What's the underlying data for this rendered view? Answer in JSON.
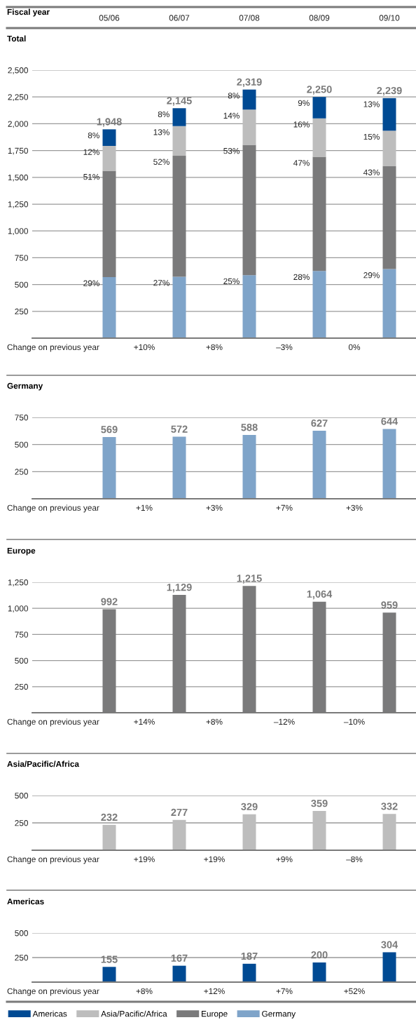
{
  "chart_data": [
    {
      "type": "bar",
      "stacked": true,
      "title": "Total",
      "xlabel": "Fiscal year",
      "categories": [
        "05/06",
        "06/07",
        "07/08",
        "08/09",
        "09/10"
      ],
      "series": [
        {
          "name": "Germany",
          "color": "#7fa4c9",
          "values": [
            569,
            572,
            588,
            627,
            644
          ]
        },
        {
          "name": "Europe",
          "color": "#7a7a7b",
          "values": [
            992,
            1129,
            1215,
            1064,
            959
          ]
        },
        {
          "name": "Asia/Pacific/Africa",
          "color": "#bdbdbd",
          "values": [
            232,
            277,
            329,
            359,
            332
          ]
        },
        {
          "name": "Americas",
          "color": "#004a93",
          "values": [
            155,
            167,
            187,
            200,
            304
          ]
        }
      ],
      "totals": [
        "1,948",
        "2,145",
        "2,319",
        "2,250",
        "2,239"
      ],
      "ylim": [
        0,
        2500
      ],
      "yticks": [
        250,
        500,
        750,
        {
          "value": 1000,
          "label": "1,000"
        },
        {
          "value": 1250,
          "label": "1,250"
        },
        {
          "value": 1500,
          "label": "1,500"
        },
        {
          "value": 1750,
          "label": "1,750"
        },
        {
          "value": 2000,
          "label": "2,000"
        },
        {
          "value": 2250,
          "label": "2,250"
        },
        {
          "value": 2500,
          "label": "2,500"
        }
      ],
      "grid": "y",
      "legend": "bottom",
      "annotations": [
        "Change on previous year",
        "+10%",
        "+8%",
        "–3%",
        "0%",
        {
          "text": "29%",
          "x": "05/06",
          "y": 569
        },
        {
          "text": "27%",
          "x": "06/07",
          "y": 572
        },
        {
          "text": "25%",
          "x": "07/08",
          "y": 588
        },
        {
          "text": "28%",
          "x": "08/09",
          "y": 627
        },
        {
          "text": "29%",
          "x": "09/10",
          "y": 644
        },
        {
          "text": "51%",
          "x": "05/06",
          "y": 1561
        },
        {
          "text": "52%",
          "x": "06/07",
          "y": 1701
        },
        {
          "text": "53%",
          "x": "07/08",
          "y": 1803
        },
        {
          "text": "47%",
          "x": "08/09",
          "y": 1691
        },
        {
          "text": "43%",
          "x": "09/10",
          "y": 1603
        },
        {
          "text": "12%",
          "x": "05/06",
          "y": 1793
        },
        {
          "text": "13%",
          "x": "06/07",
          "y": 1978
        },
        {
          "text": "14%",
          "x": "07/08",
          "y": 2132
        },
        {
          "text": "16%",
          "x": "08/09",
          "y": 2050
        },
        {
          "text": "15%",
          "x": "09/10",
          "y": 1935
        },
        {
          "text": "8%",
          "x": "05/06",
          "y": 1948
        },
        {
          "text": "8%",
          "x": "06/07",
          "y": 2145
        },
        {
          "text": "8%",
          "x": "07/08",
          "y": 2319
        },
        {
          "text": "9%",
          "x": "08/09",
          "y": 2250
        },
        {
          "text": "13%",
          "x": "09/10",
          "y": 2239
        }
      ]
    },
    {
      "type": "bar",
      "title": "Germany",
      "categories": [
        null,
        null,
        null,
        null,
        null
      ],
      "values": [
        569,
        572,
        588,
        627,
        644
      ],
      "color": "#7fa4c9",
      "data_labels": true,
      "ylim": [
        0,
        750
      ],
      "yticks": [
        250,
        500,
        750
      ],
      "grid": "y",
      "tick_labels": "y",
      "annotations": [
        "Change on previous year",
        "+1%",
        "+3%",
        "+7%",
        "+3%"
      ]
    },
    {
      "type": "bar",
      "title": "Europe",
      "categories": [
        null,
        null,
        null,
        null,
        null
      ],
      "values": [
        992,
        1129,
        1215,
        1064,
        959
      ],
      "value_labels": [
        "992",
        "1,129",
        "1,215",
        "1,064",
        "959"
      ],
      "color": "#7a7a7b",
      "ylim": [
        0,
        1250
      ],
      "yticks": [
        250,
        500,
        750,
        {
          "value": 1000,
          "label": "1,000"
        },
        {
          "value": 1250,
          "label": "1,250"
        }
      ],
      "grid": "y",
      "tick_labels": "y",
      "annotations": [
        "Change on previous year",
        "+14%",
        "+8%",
        "–12%",
        "–10%"
      ]
    },
    {
      "type": "bar",
      "title": "Asia/Pacific/Africa",
      "categories": [
        null,
        null,
        null,
        null,
        null
      ],
      "values": [
        232,
        277,
        329,
        359,
        332
      ],
      "color": "#bdbdbd",
      "data_labels": true,
      "ylim": [
        0,
        500
      ],
      "yticks": [
        250,
        500
      ],
      "grid": "y",
      "tick_labels": "y",
      "annotations": [
        "Change on previous year",
        "+19%",
        "+19%",
        "+9%",
        "–8%"
      ]
    },
    {
      "type": "bar",
      "title": "Americas",
      "categories": [
        null,
        null,
        null,
        null,
        null
      ],
      "values": [
        155,
        167,
        187,
        200,
        304
      ],
      "color": "#004a93",
      "data_labels": true,
      "ylim": [
        0,
        500
      ],
      "yticks": [
        250,
        500
      ],
      "grid": "y",
      "tick_labels": "y",
      "annotations": [
        "Change on previous year",
        "+8%",
        "+12%",
        "+7%",
        "+52%"
      ]
    }
  ]
}
